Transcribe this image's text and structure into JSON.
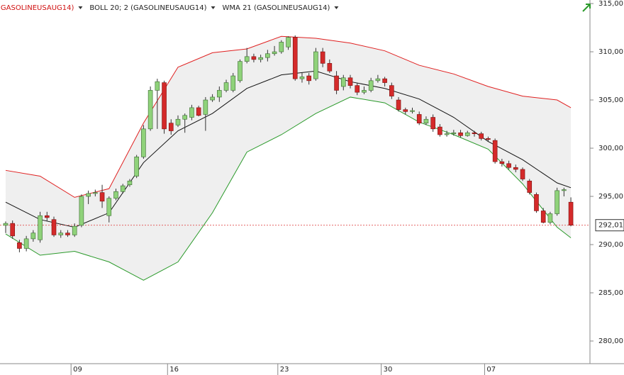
{
  "chart_data": {
    "type": "candlestick",
    "legend": [
      "(GASOLINEUSAUG14)",
      "BOLL 20; 2 (GASOLINEUSAUG14)",
      "WMA 21 (GASOLINEUSAUG14)"
    ],
    "legend_colors": [
      "#d01010",
      "#222222",
      "#222222"
    ],
    "xlim": [
      -0.82,
      84.77
    ],
    "xticks": [
      {
        "value": 10,
        "label": "09"
      },
      {
        "value": 24,
        "label": "16"
      },
      {
        "value": 40,
        "label": "23"
      },
      {
        "value": 55,
        "label": "30"
      },
      {
        "value": 70,
        "label": "07"
      }
    ],
    "ylim": [
      277.65,
      315.37
    ],
    "yticks": [
      {
        "value": 280,
        "label": "280,00"
      },
      {
        "value": 285,
        "label": "285,00"
      },
      {
        "value": 290,
        "label": "290,00"
      },
      {
        "value": 295,
        "label": "295,00"
      },
      {
        "value": 300,
        "label": "300,00"
      },
      {
        "value": 305,
        "label": "305,00"
      },
      {
        "value": 310,
        "label": "310,00"
      },
      {
        "value": 315,
        "label": "315,00"
      }
    ],
    "up_color": "#8fd27a",
    "down_color": "#d42a2a",
    "open": [
      292.0,
      292.2,
      290.2,
      289.6,
      290.6,
      290.5,
      293.0,
      292.6,
      291.0,
      291.2,
      291.0,
      292.0,
      295.0,
      295.3,
      295.4,
      293.0,
      294.8,
      295.5,
      296.2,
      297.1,
      299.1,
      302.0,
      306.0,
      306.8,
      302.6,
      302.4,
      303.0,
      303.2,
      304.2,
      303.5,
      305.0,
      305.3,
      306.0,
      306.0,
      307.0,
      309.0,
      309.5,
      309.2,
      309.4,
      309.8,
      310.0,
      310.5,
      311.5,
      307.2,
      307.5,
      307.2,
      310.0,
      308.8,
      307.5,
      306.4,
      307.3,
      306.5,
      305.8,
      306.0,
      307.0,
      307.2,
      306.5,
      305.0,
      304.0,
      303.8,
      303.5,
      302.6,
      303.2,
      302.2,
      301.4,
      301.5,
      301.6,
      301.3,
      301.6,
      301.5,
      301.0,
      300.8,
      298.6,
      298.4,
      298.0,
      297.8,
      296.6,
      295.2,
      293.5,
      292.3,
      293.2,
      295.6,
      294.4
    ],
    "high": [
      292.4,
      292.5,
      290.5,
      290.9,
      291.5,
      293.4,
      293.4,
      292.9,
      291.5,
      291.5,
      292.2,
      295.2,
      295.6,
      295.7,
      296.2,
      295.0,
      295.8,
      296.3,
      296.8,
      299.3,
      302.4,
      306.4,
      307.2,
      307.0,
      303.0,
      303.4,
      303.6,
      304.5,
      304.4,
      305.3,
      305.6,
      306.4,
      307.1,
      307.8,
      309.2,
      310.4,
      309.8,
      309.7,
      310.2,
      310.6,
      311.2,
      311.6,
      311.7,
      307.8,
      307.8,
      310.4,
      310.4,
      309.2,
      308.0,
      307.6,
      307.6,
      306.8,
      306.4,
      307.3,
      307.6,
      307.4,
      306.8,
      305.3,
      304.2,
      304.2,
      303.8,
      303.3,
      303.5,
      302.5,
      301.8,
      301.9,
      301.9,
      301.8,
      301.8,
      301.7,
      301.2,
      301.0,
      298.9,
      298.7,
      298.3,
      298.0,
      296.8,
      295.4,
      293.8,
      293.4,
      295.9,
      295.9,
      294.9
    ],
    "low": [
      291.2,
      290.6,
      289.2,
      289.3,
      290.3,
      290.2,
      292.4,
      290.8,
      290.7,
      290.8,
      290.8,
      291.8,
      294.2,
      295.0,
      293.8,
      292.3,
      294.6,
      295.3,
      296.0,
      296.9,
      298.9,
      301.8,
      302.0,
      301.5,
      301.4,
      302.2,
      301.6,
      302.9,
      303.3,
      301.8,
      304.8,
      304.8,
      305.8,
      305.8,
      306.8,
      308.8,
      308.9,
      308.9,
      309.0,
      309.6,
      309.8,
      310.2,
      307.0,
      306.8,
      306.6,
      307.0,
      308.4,
      307.8,
      305.6,
      306.0,
      306.2,
      305.5,
      305.6,
      305.8,
      306.8,
      306.4,
      305.1,
      303.8,
      303.5,
      303.6,
      302.4,
      302.4,
      301.7,
      301.2,
      301.2,
      301.3,
      301.1,
      301.2,
      301.2,
      300.8,
      300.7,
      298.4,
      298.1,
      297.8,
      297.5,
      296.6,
      295.2,
      293.3,
      292.2,
      292.1,
      293.0,
      295.0,
      291.9
    ],
    "close": [
      292.2,
      290.9,
      289.6,
      290.6,
      291.2,
      293.0,
      292.8,
      291.0,
      291.2,
      291.0,
      291.9,
      295.0,
      295.3,
      295.4,
      294.5,
      294.8,
      295.5,
      296.1,
      296.6,
      299.1,
      302.0,
      306.0,
      306.9,
      302.0,
      301.8,
      303.0,
      303.4,
      304.2,
      303.4,
      305.0,
      305.3,
      306.0,
      306.8,
      307.5,
      309.0,
      309.5,
      309.2,
      309.4,
      309.8,
      310.0,
      311.0,
      311.5,
      307.2,
      307.4,
      307.0,
      310.0,
      308.8,
      308.0,
      306.0,
      307.3,
      306.5,
      305.8,
      306.0,
      307.0,
      307.2,
      306.8,
      305.4,
      304.0,
      303.8,
      303.9,
      302.6,
      303.0,
      302.0,
      301.4,
      301.5,
      301.6,
      301.3,
      301.6,
      301.5,
      301.0,
      300.9,
      298.6,
      298.4,
      298.0,
      297.8,
      296.8,
      295.4,
      293.5,
      292.3,
      293.2,
      295.6,
      295.7,
      292.01
    ],
    "lines": [
      {
        "color": "#e02020",
        "x": [
          0,
          5,
          10,
          15,
          20,
          25,
          30,
          35,
          40,
          45,
          50,
          55,
          60,
          65,
          70,
          75,
          80,
          82
        ],
        "values": [
          297.7,
          297.1,
          294.9,
          295.8,
          302.6,
          308.4,
          309.9,
          310.3,
          311.6,
          311.4,
          310.9,
          310.1,
          308.6,
          307.7,
          306.4,
          305.4,
          305.0,
          304.2
        ]
      },
      {
        "color": "#2a9a2a",
        "x": [
          0,
          5,
          10,
          15,
          20,
          25,
          30,
          35,
          40,
          45,
          50,
          55,
          60,
          65,
          70,
          75,
          80,
          82
        ],
        "values": [
          291.1,
          288.9,
          289.3,
          288.2,
          286.3,
          288.2,
          293.3,
          299.6,
          301.4,
          303.6,
          305.3,
          304.7,
          302.7,
          301.4,
          299.9,
          296.3,
          291.8,
          290.7
        ]
      },
      {
        "color": "#111111",
        "x": [
          0,
          5,
          10,
          15,
          20,
          25,
          30,
          35,
          40,
          45,
          50,
          55,
          60,
          65,
          70,
          75,
          80,
          82
        ],
        "values": [
          294.4,
          292.6,
          291.8,
          293.3,
          298.5,
          301.8,
          303.6,
          306.2,
          307.6,
          308.0,
          306.9,
          306.2,
          305.1,
          303.2,
          300.7,
          298.8,
          296.4,
          295.9
        ]
      }
    ],
    "last_price": {
      "value": 292.01,
      "label": "292,01"
    }
  }
}
